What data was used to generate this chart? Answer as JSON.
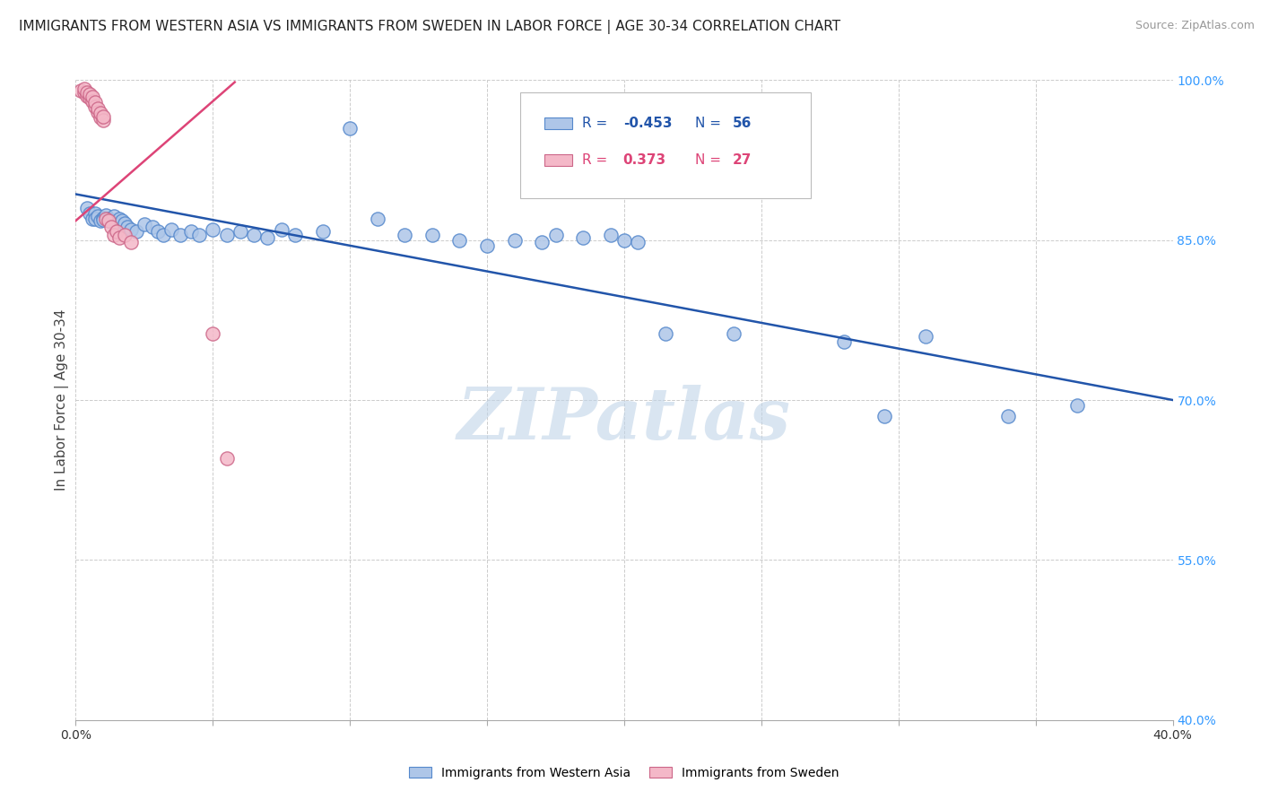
{
  "title": "IMMIGRANTS FROM WESTERN ASIA VS IMMIGRANTS FROM SWEDEN IN LABOR FORCE | AGE 30-34 CORRELATION CHART",
  "source": "Source: ZipAtlas.com",
  "ylabel": "In Labor Force | Age 30-34",
  "watermark": "ZIPatlas",
  "legend_blue_r": "-0.453",
  "legend_blue_n": "56",
  "legend_pink_r": "0.373",
  "legend_pink_n": "27",
  "legend_blue_label": "Immigrants from Western Asia",
  "legend_pink_label": "Immigrants from Sweden",
  "xlim": [
    0.0,
    0.4
  ],
  "ylim": [
    0.4,
    1.0
  ],
  "yticks": [
    0.4,
    0.55,
    0.7,
    0.85,
    1.0
  ],
  "ytick_labels": [
    "40.0%",
    "55.0%",
    "70.0%",
    "85.0%",
    "100.0%"
  ],
  "xtick_labels_ends": [
    "0.0%",
    "40.0%"
  ],
  "blue_scatter_x": [
    0.004,
    0.005,
    0.006,
    0.007,
    0.007,
    0.008,
    0.009,
    0.01,
    0.01,
    0.011,
    0.012,
    0.013,
    0.014,
    0.015,
    0.016,
    0.017,
    0.018,
    0.019,
    0.02,
    0.022,
    0.025,
    0.028,
    0.03,
    0.032,
    0.035,
    0.038,
    0.042,
    0.045,
    0.05,
    0.055,
    0.06,
    0.065,
    0.07,
    0.075,
    0.08,
    0.09,
    0.1,
    0.11,
    0.12,
    0.13,
    0.14,
    0.15,
    0.16,
    0.17,
    0.175,
    0.185,
    0.195,
    0.2,
    0.205,
    0.215,
    0.24,
    0.28,
    0.295,
    0.31,
    0.34,
    0.365
  ],
  "blue_scatter_y": [
    0.88,
    0.875,
    0.87,
    0.875,
    0.87,
    0.872,
    0.868,
    0.871,
    0.869,
    0.873,
    0.87,
    0.867,
    0.872,
    0.865,
    0.87,
    0.868,
    0.866,
    0.862,
    0.86,
    0.858,
    0.865,
    0.862,
    0.858,
    0.855,
    0.86,
    0.855,
    0.858,
    0.855,
    0.86,
    0.855,
    0.858,
    0.855,
    0.852,
    0.86,
    0.855,
    0.858,
    0.955,
    0.87,
    0.855,
    0.855,
    0.85,
    0.845,
    0.85,
    0.848,
    0.855,
    0.852,
    0.855,
    0.85,
    0.848,
    0.762,
    0.762,
    0.755,
    0.685,
    0.76,
    0.685,
    0.695
  ],
  "pink_scatter_x": [
    0.002,
    0.003,
    0.003,
    0.004,
    0.004,
    0.005,
    0.005,
    0.006,
    0.006,
    0.007,
    0.007,
    0.008,
    0.008,
    0.009,
    0.009,
    0.01,
    0.01,
    0.011,
    0.012,
    0.013,
    0.014,
    0.015,
    0.016,
    0.018,
    0.02,
    0.05,
    0.055
  ],
  "pink_scatter_y": [
    0.99,
    0.988,
    0.992,
    0.985,
    0.988,
    0.983,
    0.987,
    0.98,
    0.984,
    0.975,
    0.979,
    0.97,
    0.973,
    0.965,
    0.969,
    0.962,
    0.966,
    0.87,
    0.868,
    0.862,
    0.855,
    0.858,
    0.852,
    0.855,
    0.848,
    0.762,
    0.645
  ],
  "blue_line_x": [
    0.0,
    0.4
  ],
  "blue_line_y": [
    0.893,
    0.7
  ],
  "pink_line_x": [
    0.0,
    0.058
  ],
  "pink_line_y": [
    0.868,
    0.998
  ],
  "background_color": "#ffffff",
  "grid_color": "#cccccc",
  "blue_color": "#aec6e8",
  "blue_edge_color": "#5588cc",
  "blue_line_color": "#2255aa",
  "pink_color": "#f4b8c8",
  "pink_edge_color": "#cc6688",
  "pink_line_color": "#dd4477",
  "watermark_color": "#c0d4e8",
  "title_fontsize": 11,
  "axis_label_fontsize": 11,
  "tick_fontsize": 10,
  "legend_fontsize": 11,
  "marker_size": 120
}
